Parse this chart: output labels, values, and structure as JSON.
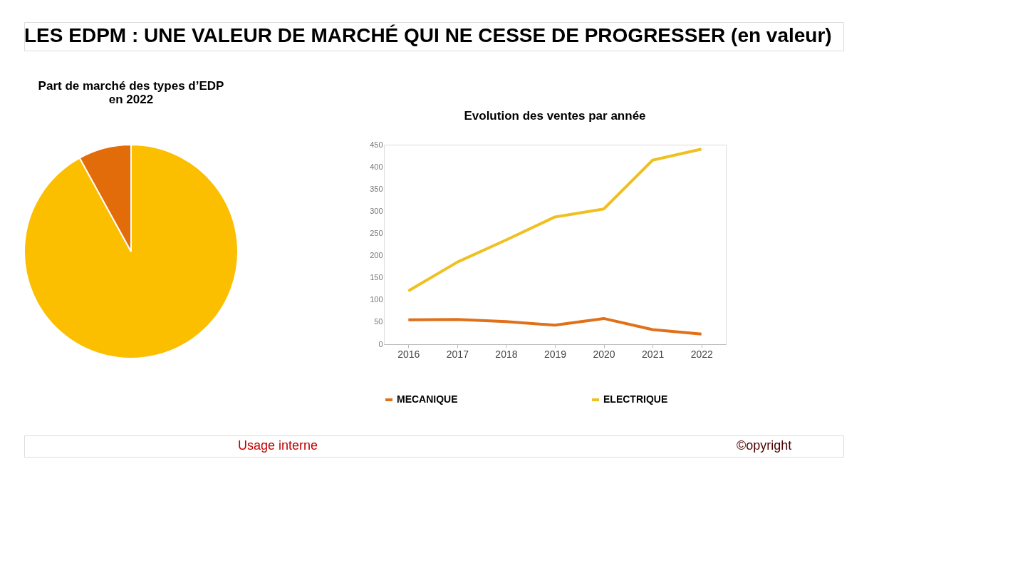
{
  "chart_data": [
    {
      "type": "pie",
      "title": [
        "Part de marché des types d’EDP",
        "en 2022"
      ],
      "categories": [
        null,
        null
      ],
      "values": [
        92,
        8
      ],
      "colors": [
        "#fbbf00",
        "#e36c0a"
      ],
      "annotations": [
        "LES EDPM : UNE VALEUR DE MARCHÉ QUI NE CESSE DE PROGRESSER (en valeur)",
        "Usage interne",
        "©opyright"
      ]
    },
    {
      "type": "line",
      "title": "Evolution des ventes par année",
      "categories": [
        "2016",
        "2017",
        "2018",
        "2019",
        "2020",
        "2021",
        "2022"
      ],
      "series": [
        {
          "name": "MECANIQUE",
          "color": "#e0701a",
          "values": [
            55,
            56,
            51,
            43,
            58,
            33,
            23
          ]
        },
        {
          "name": "ELECTRIQUE",
          "color": "#f0c020",
          "values": [
            120,
            185,
            235,
            287,
            305,
            415,
            440
          ]
        }
      ],
      "ylim": [
        0,
        450
      ],
      "yticks": [
        0,
        50,
        100,
        150,
        200,
        250,
        300,
        350,
        400,
        450
      ],
      "grid": false,
      "legend": "bottom"
    }
  ]
}
